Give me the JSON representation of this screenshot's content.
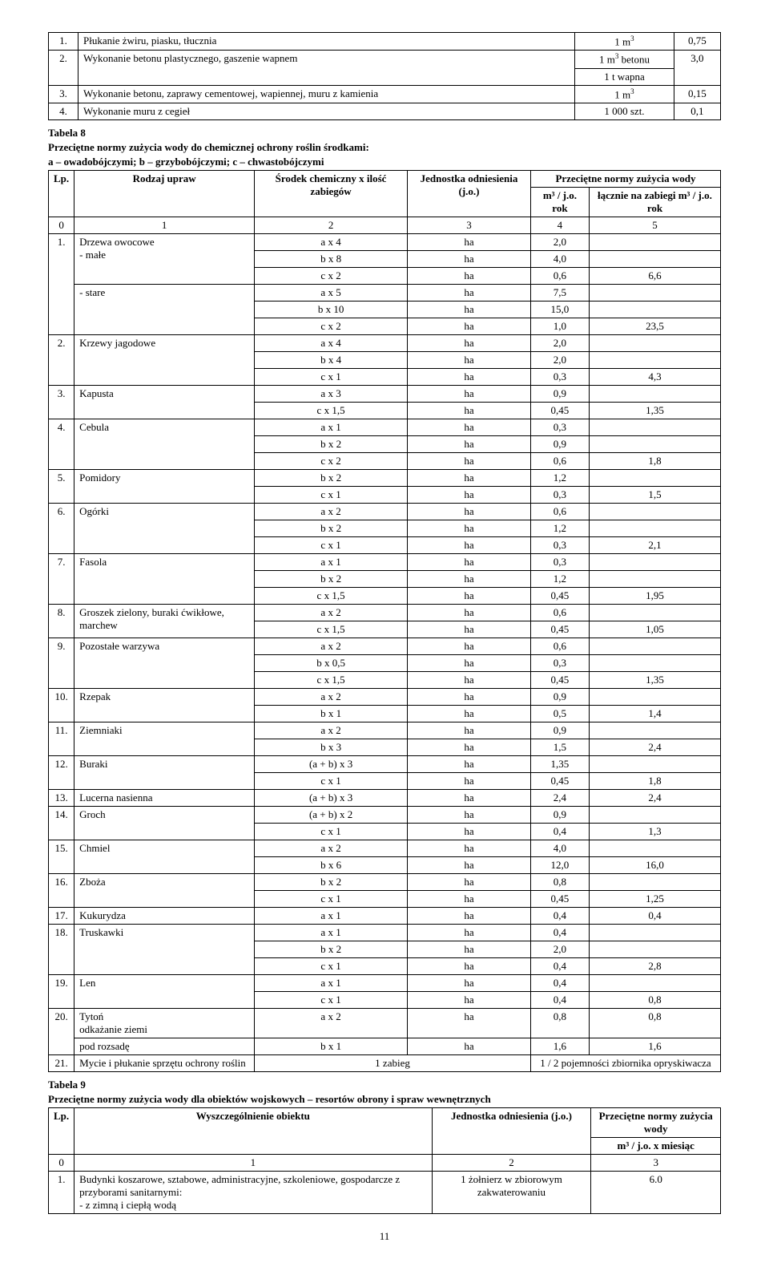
{
  "table7": {
    "rows": [
      {
        "num": "1.",
        "name": "Płukanie żwiru, piasku, tłucznia",
        "unit_html": "1 m<sup>3</sup>",
        "val": "0,75",
        "rowspan": 1
      },
      {
        "num": "2.",
        "name": "Wykonanie betonu plastycznego, gaszenie wapnem",
        "unit_html": "1 m<sup>3</sup> betonu",
        "unit2": "1 t wapna",
        "val": "3,0",
        "rowspan": 2
      },
      {
        "num": "3.",
        "name": "Wykonanie betonu, zaprawy cementowej, wapiennej, muru z kamienia",
        "unit_html": "1 m<sup>3</sup>",
        "val": "0,15",
        "rowspan": 1
      },
      {
        "num": "4.",
        "name": "Wykonanie muru z cegieł",
        "unit_html": "1 000 szt.",
        "val": "0,1",
        "rowspan": 1
      }
    ]
  },
  "table8": {
    "caption": "Tabela 8",
    "title": "Przeciętne normy zużycia wody do chemicznej ochrony roślin środkami:",
    "subtitle": "a – owadobójczymi; b – grzybobójczymi; c – chwastobójczymi",
    "headers": {
      "lp": "Lp.",
      "rodzaj": "Rodzaj upraw",
      "srodek": "Środek chemiczny x ilość zabiegów",
      "jedn": "Jednostka odniesienia (j.o.)",
      "normy": "Przeciętne normy zużycia wody",
      "m3": "m³ / j.o. rok",
      "lacznie": "łącznie na zabiegi m³ / j.o. rok"
    },
    "cols0": [
      "0",
      "1",
      "2",
      "3",
      "4",
      "5"
    ],
    "rows": [
      {
        "lp": "1.",
        "lp_rows": 6,
        "name": "Drzewa owocowe\n- małe",
        "name_rows": 3,
        "sr": "a x 4",
        "j": "ha",
        "v1": "2,0",
        "v2": ""
      },
      {
        "sr": "b x 8",
        "j": "ha",
        "v1": "4,0",
        "v2": ""
      },
      {
        "sr": "c x 2",
        "j": "ha",
        "v1": "0,6",
        "v2": "6,6"
      },
      {
        "name": "- stare",
        "name_rows": 3,
        "sr": "a x 5",
        "j": "ha",
        "v1": "7,5",
        "v2": ""
      },
      {
        "sr": "b x 10",
        "j": "ha",
        "v1": "15,0",
        "v2": ""
      },
      {
        "sr": "c x 2",
        "j": "ha",
        "v1": "1,0",
        "v2": "23,5"
      },
      {
        "lp": "2.",
        "lp_rows": 3,
        "name": "Krzewy jagodowe",
        "name_rows": 3,
        "sr": "a x 4",
        "j": "ha",
        "v1": "2,0",
        "v2": ""
      },
      {
        "sr": "b x 4",
        "j": "ha",
        "v1": "2,0",
        "v2": ""
      },
      {
        "sr": "c x 1",
        "j": "ha",
        "v1": "0,3",
        "v2": "4,3"
      },
      {
        "lp": "3.",
        "lp_rows": 2,
        "name": "Kapusta",
        "name_rows": 2,
        "sr": "a x 3",
        "j": "ha",
        "v1": "0,9",
        "v2": ""
      },
      {
        "sr": "c x 1,5",
        "j": "ha",
        "v1": "0,45",
        "v2": "1,35"
      },
      {
        "lp": "4.",
        "lp_rows": 3,
        "name": "Cebula",
        "name_rows": 3,
        "sr": "a x 1",
        "j": "ha",
        "v1": "0,3",
        "v2": ""
      },
      {
        "sr": "b x 2",
        "j": "ha",
        "v1": "0,9",
        "v2": ""
      },
      {
        "sr": "c x 2",
        "j": "ha",
        "v1": "0,6",
        "v2": "1,8"
      },
      {
        "lp": "5.",
        "lp_rows": 2,
        "name": "Pomidory",
        "name_rows": 2,
        "sr": "b x 2",
        "j": "ha",
        "v1": "1,2",
        "v2": ""
      },
      {
        "sr": "c x 1",
        "j": "ha",
        "v1": "0,3",
        "v2": "1,5"
      },
      {
        "lp": "6.",
        "lp_rows": 3,
        "name": "Ogórki",
        "name_rows": 3,
        "sr": "a x 2",
        "j": "ha",
        "v1": "0,6",
        "v2": ""
      },
      {
        "sr": "b x 2",
        "j": "ha",
        "v1": "1,2",
        "v2": ""
      },
      {
        "sr": "c x 1",
        "j": "ha",
        "v1": "0,3",
        "v2": "2,1"
      },
      {
        "lp": "7.",
        "lp_rows": 3,
        "name": "Fasola",
        "name_rows": 3,
        "sr": "a x 1",
        "j": "ha",
        "v1": "0,3",
        "v2": ""
      },
      {
        "sr": "b x 2",
        "j": "ha",
        "v1": "1,2",
        "v2": ""
      },
      {
        "sr": "c x 1,5",
        "j": "ha",
        "v1": "0,45",
        "v2": "1,95"
      },
      {
        "lp": "8.",
        "lp_rows": 2,
        "name": "Groszek zielony, buraki ćwikłowe, marchew",
        "name_rows": 2,
        "sr": "a x 2",
        "j": "ha",
        "v1": "0,6",
        "v2": ""
      },
      {
        "sr": "c x 1,5",
        "j": "ha",
        "v1": "0,45",
        "v2": "1,05"
      },
      {
        "lp": "9.",
        "lp_rows": 3,
        "name": "Pozostałe warzywa",
        "name_rows": 3,
        "sr": "a x 2",
        "j": "ha",
        "v1": "0,6",
        "v2": ""
      },
      {
        "sr": "b x 0,5",
        "j": "ha",
        "v1": "0,3",
        "v2": ""
      },
      {
        "sr": "c x 1,5",
        "j": "ha",
        "v1": "0,45",
        "v2": "1,35"
      },
      {
        "lp": "10.",
        "lp_rows": 2,
        "name": "Rzepak",
        "name_rows": 2,
        "sr": "a x 2",
        "j": "ha",
        "v1": "0,9",
        "v2": ""
      },
      {
        "sr": "b x 1",
        "j": "ha",
        "v1": "0,5",
        "v2": "1,4"
      },
      {
        "lp": "11.",
        "lp_rows": 2,
        "name": "Ziemniaki",
        "name_rows": 2,
        "sr": "a x 2",
        "j": "ha",
        "v1": "0,9",
        "v2": ""
      },
      {
        "sr": "b x 3",
        "j": "ha",
        "v1": "1,5",
        "v2": "2,4"
      },
      {
        "lp": "12.",
        "lp_rows": 2,
        "name": "Buraki",
        "name_rows": 2,
        "sr": "(a + b) x 3",
        "j": "ha",
        "v1": "1,35",
        "v2": ""
      },
      {
        "sr": "c x 1",
        "j": "ha",
        "v1": "0,45",
        "v2": "1,8"
      },
      {
        "lp": "13.",
        "lp_rows": 1,
        "name": "Lucerna nasienna",
        "name_rows": 1,
        "sr": "(a + b) x 3",
        "j": "ha",
        "v1": "2,4",
        "v2": "2,4"
      },
      {
        "lp": "14.",
        "lp_rows": 2,
        "name": "Groch",
        "name_rows": 2,
        "sr": "(a + b) x 2",
        "j": "ha",
        "v1": "0,9",
        "v2": ""
      },
      {
        "sr": "c x 1",
        "j": "ha",
        "v1": "0,4",
        "v2": "1,3"
      },
      {
        "lp": "15.",
        "lp_rows": 2,
        "name": "Chmiel",
        "name_rows": 2,
        "sr": "a x 2",
        "j": "ha",
        "v1": "4,0",
        "v2": ""
      },
      {
        "sr": "b x 6",
        "j": "ha",
        "v1": "12,0",
        "v2": "16,0"
      },
      {
        "lp": "16.",
        "lp_rows": 2,
        "name": "Zboża",
        "name_rows": 2,
        "sr": "b x 2",
        "j": "ha",
        "v1": "0,8",
        "v2": ""
      },
      {
        "sr": "c x 1",
        "j": "ha",
        "v1": "0,45",
        "v2": "1,25"
      },
      {
        "lp": "17.",
        "lp_rows": 1,
        "name": "Kukurydza",
        "name_rows": 1,
        "sr": "a x 1",
        "j": "ha",
        "v1": "0,4",
        "v2": "0,4"
      },
      {
        "lp": "18.",
        "lp_rows": 3,
        "name": "Truskawki",
        "name_rows": 3,
        "sr": "a x 1",
        "j": "ha",
        "v1": "0,4",
        "v2": ""
      },
      {
        "sr": "b x 2",
        "j": "ha",
        "v1": "2,0",
        "v2": ""
      },
      {
        "sr": "c x 1",
        "j": "ha",
        "v1": "0,4",
        "v2": "2,8"
      },
      {
        "lp": "19.",
        "lp_rows": 2,
        "name": "Len",
        "name_rows": 2,
        "sr": "a x 1",
        "j": "ha",
        "v1": "0,4",
        "v2": ""
      },
      {
        "sr": "c x 1",
        "j": "ha",
        "v1": "0,4",
        "v2": "0,8"
      },
      {
        "lp": "20.",
        "lp_rows": 2,
        "name": "Tytoń\nodkażanie ziemi",
        "name_rows": 1,
        "sr": "a x 2",
        "j": "ha",
        "v1": "0,8",
        "v2": "0,8"
      },
      {
        "name": "pod rozsadę",
        "name_rows": 1,
        "sr": "b x 1",
        "j": "ha",
        "v1": "1,6",
        "v2": "1,6"
      },
      {
        "lp": "21.",
        "lp_rows": 1,
        "name": "Mycie i płukanie sprzętu ochrony roślin",
        "name_rows": 1,
        "sr_colspan": 2,
        "sr": "1 zabieg",
        "v_colspan": 2,
        "v1": "1 / 2 pojemności zbiornika opryskiwacza"
      }
    ]
  },
  "table9": {
    "caption": "Tabela 9",
    "title": "Przeciętne normy zużycia wody dla obiektów wojskowych – resortów obrony i spraw wewnętrznych",
    "headers": {
      "lp": "Lp.",
      "wys": "Wyszczególnienie obiektu",
      "jedn": "Jednostka odniesienia (j.o.)",
      "normy": "Przeciętne normy zużycia wody",
      "m3": "m³ / j.o. x miesiąc"
    },
    "cols0": [
      "0",
      "1",
      "2",
      "3"
    ],
    "rows": [
      {
        "lp": "1.",
        "name": "Budynki koszarowe, sztabowe, administracyjne, szkoleniowe, gospodarcze z przyborami sanitarnymi:\n- z zimną i ciepłą wodą",
        "j": "1 żołnierz w zbiorowym zakwaterowaniu",
        "v": "6.0"
      }
    ]
  },
  "page": "11"
}
